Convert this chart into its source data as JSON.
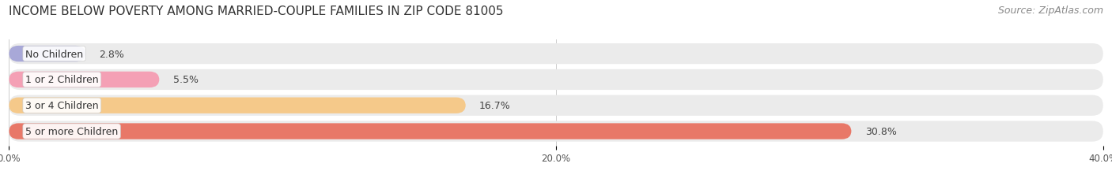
{
  "title": "INCOME BELOW POVERTY AMONG MARRIED-COUPLE FAMILIES IN ZIP CODE 81005",
  "source": "Source: ZipAtlas.com",
  "categories": [
    "No Children",
    "1 or 2 Children",
    "3 or 4 Children",
    "5 or more Children"
  ],
  "values": [
    2.8,
    5.5,
    16.7,
    30.8
  ],
  "bar_colors": [
    "#a8a8d8",
    "#f4a0b5",
    "#f5c98a",
    "#e87868"
  ],
  "bar_bg_color": "#ebebeb",
  "xlim": [
    0,
    40
  ],
  "xticks": [
    0.0,
    20.0,
    40.0
  ],
  "xtick_labels": [
    "0.0%",
    "20.0%",
    "40.0%"
  ],
  "title_fontsize": 11,
  "source_fontsize": 9,
  "label_fontsize": 9,
  "value_fontsize": 9,
  "background_color": "#ffffff",
  "plot_bg_color": "#ffffff"
}
